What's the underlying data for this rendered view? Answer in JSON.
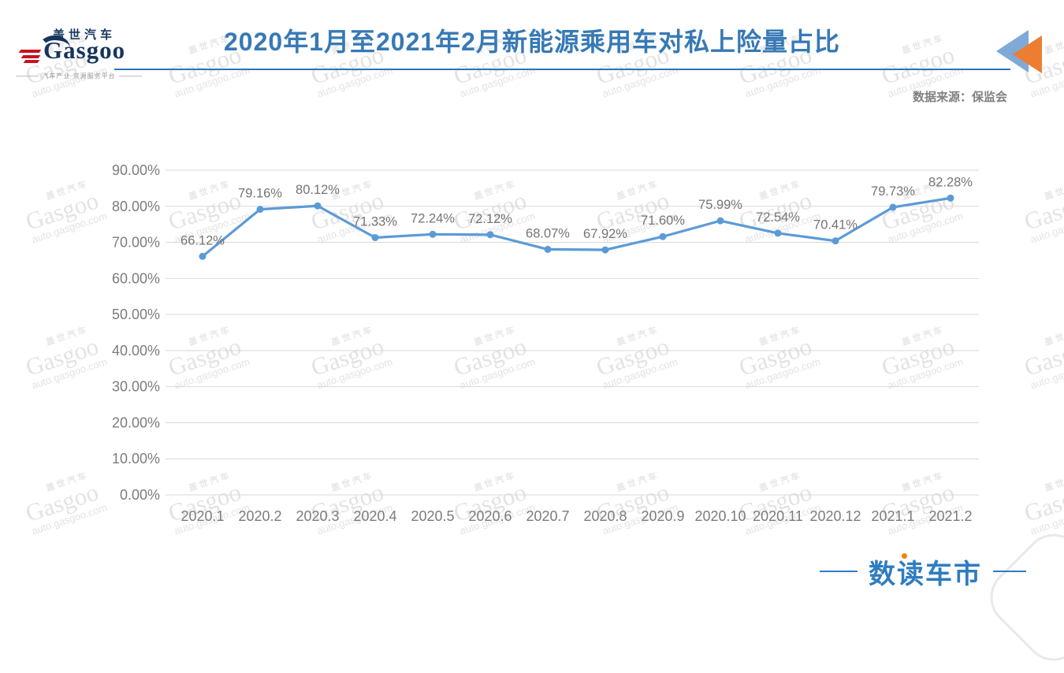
{
  "header": {
    "logo": {
      "brand_cn": "盖世汽车",
      "brand_en": "Gasgoo",
      "tagline": "汽车产业 资源服务平台"
    },
    "title": "2020年1月至2021年2月新能源乘用车对私上险量占比",
    "source": "数据来源：保监会"
  },
  "watermark": {
    "line1": "盖世汽车",
    "line2": "Gasgoo",
    "line3": "auto.gasgoo.com"
  },
  "footer": {
    "logo_text": "数读车市"
  },
  "colors": {
    "title_blue": "#3779b5",
    "separator_blue": "#2e74b5",
    "line_blue": "#5b9bd5",
    "axis_text_gray": "#7c7c7c",
    "data_label_gray": "#757575",
    "gridline_gray": "#d9d9d9",
    "arrow_blue": "#7fa9d6",
    "arrow_orange": "#ed7d31",
    "footer_blue": "#2f7cc0",
    "logo_navy": "#16355f",
    "logo_red": "#c5121f",
    "source_gray": "#808080"
  },
  "chart_data": {
    "type": "line",
    "title": "2020年1月至2021年2月新能源乘用车对私上险量占比",
    "categories": [
      "2020.1",
      "2020.2",
      "2020.3",
      "2020.4",
      "2020.5",
      "2020.6",
      "2020.7",
      "2020.8",
      "2020.9",
      "2020.10",
      "2020.11",
      "2020.12",
      "2021.1",
      "2021.2"
    ],
    "values": [
      66.12,
      79.16,
      80.12,
      71.33,
      72.24,
      72.12,
      68.07,
      67.92,
      71.6,
      75.99,
      72.54,
      70.41,
      79.73,
      82.28
    ],
    "point_labels": [
      "66.12%",
      "79.16%",
      "80.12%",
      "71.33%",
      "72.24%",
      "72.12%",
      "68.07%",
      "67.92%",
      "71.60%",
      "75.99%",
      "72.54%",
      "70.41%",
      "79.73%",
      "82.28%"
    ],
    "y_ticks": [
      "0.00%",
      "10.00%",
      "20.00%",
      "30.00%",
      "40.00%",
      "50.00%",
      "60.00%",
      "70.00%",
      "80.00%",
      "90.00%"
    ],
    "ylim": [
      0,
      90
    ],
    "y_tick_step": 10,
    "xlabel": "",
    "ylabel": "",
    "grid": true,
    "legend": "none",
    "marker": "circle",
    "line_color": "#5b9bd5"
  }
}
